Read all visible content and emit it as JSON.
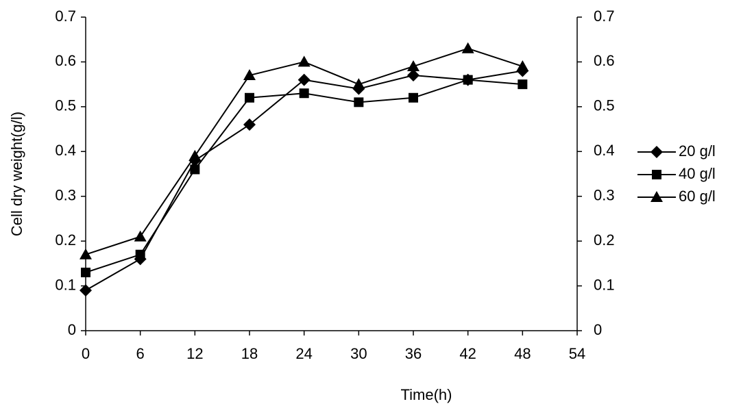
{
  "chart_data": {
    "type": "line",
    "x_label": "Time(h)",
    "y_label": "Cell dry weight(g/l)",
    "x": [
      0,
      6,
      12,
      18,
      24,
      30,
      36,
      42,
      48
    ],
    "series": [
      {
        "name": "20 g/l",
        "color": "#000000",
        "marker": "diamond",
        "values": [
          0.09,
          0.16,
          0.38,
          0.46,
          0.56,
          0.54,
          0.57,
          0.56,
          0.58
        ]
      },
      {
        "name": "40 g/l",
        "color": "#000000",
        "marker": "square",
        "values": [
          0.13,
          0.17,
          0.36,
          0.52,
          0.53,
          0.51,
          0.52,
          0.56,
          0.55
        ]
      },
      {
        "name": "60 g/l",
        "color": "#000000",
        "marker": "triangle",
        "values": [
          0.17,
          0.21,
          0.39,
          0.57,
          0.6,
          0.55,
          0.59,
          0.63,
          0.59
        ]
      }
    ],
    "xlim": [
      0,
      54
    ],
    "xticks": [
      0,
      6,
      12,
      18,
      24,
      30,
      36,
      42,
      48,
      54
    ],
    "ylim": [
      0,
      0.7
    ],
    "yticks": [
      0,
      0.1,
      0.2,
      0.3,
      0.4,
      0.5,
      0.6,
      0.7
    ],
    "y2lim": [
      0,
      0.7
    ],
    "y2ticks": [
      0,
      0.1,
      0.2,
      0.3,
      0.4,
      0.5,
      0.6,
      0.7
    ],
    "legend": "right",
    "grid": false
  }
}
